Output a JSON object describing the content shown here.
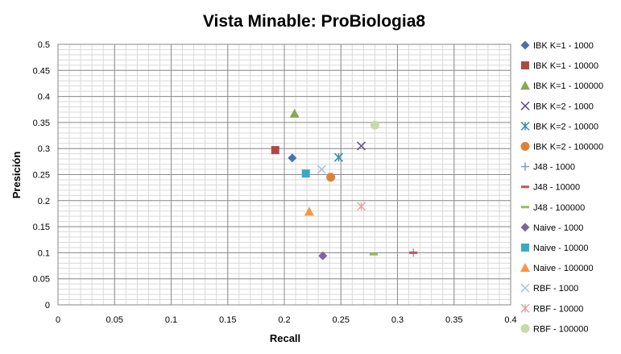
{
  "chart_data": {
    "type": "scatter",
    "title": "Vista Minable: ProBiologia8",
    "xlabel": "Recall",
    "ylabel": "Presición",
    "xlim": [
      0,
      0.4
    ],
    "ylim": [
      0,
      0.5
    ],
    "x_ticks": [
      "0",
      "0.05",
      "0.1",
      "0.15",
      "0.2",
      "0.25",
      "0.3",
      "0.35",
      "0.4"
    ],
    "y_ticks": [
      "0",
      "0.05",
      "0.1",
      "0.15",
      "0.2",
      "0.25",
      "0.3",
      "0.35",
      "0.4",
      "0.45",
      "0.5"
    ],
    "grid": true,
    "legend_position": "right",
    "series": [
      {
        "name": "IBK K=1 - 1000",
        "marker": "diamond",
        "color": "#4A72B0",
        "x": 0.207,
        "y": 0.282
      },
      {
        "name": "IBK K=1 - 10000",
        "marker": "square",
        "color": "#B04743",
        "x": 0.192,
        "y": 0.297
      },
      {
        "name": "IBK K=1 - 100000",
        "marker": "triangle",
        "color": "#8AA84E",
        "x": 0.209,
        "y": 0.367
      },
      {
        "name": "IBK K=2 - 1000",
        "marker": "x",
        "color": "#5E4A82",
        "x": 0.268,
        "y": 0.305
      },
      {
        "name": "IBK K=2 - 10000",
        "marker": "star",
        "color": "#2F8DAA",
        "x": 0.248,
        "y": 0.283
      },
      {
        "name": "IBK K=2 - 100000",
        "marker": "circle",
        "color": "#DD8239",
        "x": 0.241,
        "y": 0.245
      },
      {
        "name": "J48 - 1000",
        "marker": "plus",
        "color": "#7F9CC9",
        "x": 0.314,
        "y": 0.1
      },
      {
        "name": "J48 - 10000",
        "marker": "dash",
        "color": "#C8544F",
        "x": 0.314,
        "y": 0.1
      },
      {
        "name": "J48 - 100000",
        "marker": "dash",
        "color": "#9BBB59",
        "x": 0.279,
        "y": 0.097
      },
      {
        "name": "Naive - 1000",
        "marker": "diamond",
        "color": "#7F64A2",
        "x": 0.234,
        "y": 0.094
      },
      {
        "name": "Naive - 10000",
        "marker": "square",
        "color": "#3AA8C5",
        "x": 0.219,
        "y": 0.252
      },
      {
        "name": "Naive - 100000",
        "marker": "triangle",
        "color": "#F79646",
        "x": 0.222,
        "y": 0.179
      },
      {
        "name": "RBF - 1000",
        "marker": "x",
        "color": "#A9C2E3",
        "x": 0.233,
        "y": 0.26
      },
      {
        "name": "RBF - 10000",
        "marker": "star",
        "color": "#E0A7A5",
        "x": 0.268,
        "y": 0.189
      },
      {
        "name": "RBF - 100000",
        "marker": "circle",
        "color": "#C9D9A8",
        "x": 0.28,
        "y": 0.345
      }
    ]
  }
}
